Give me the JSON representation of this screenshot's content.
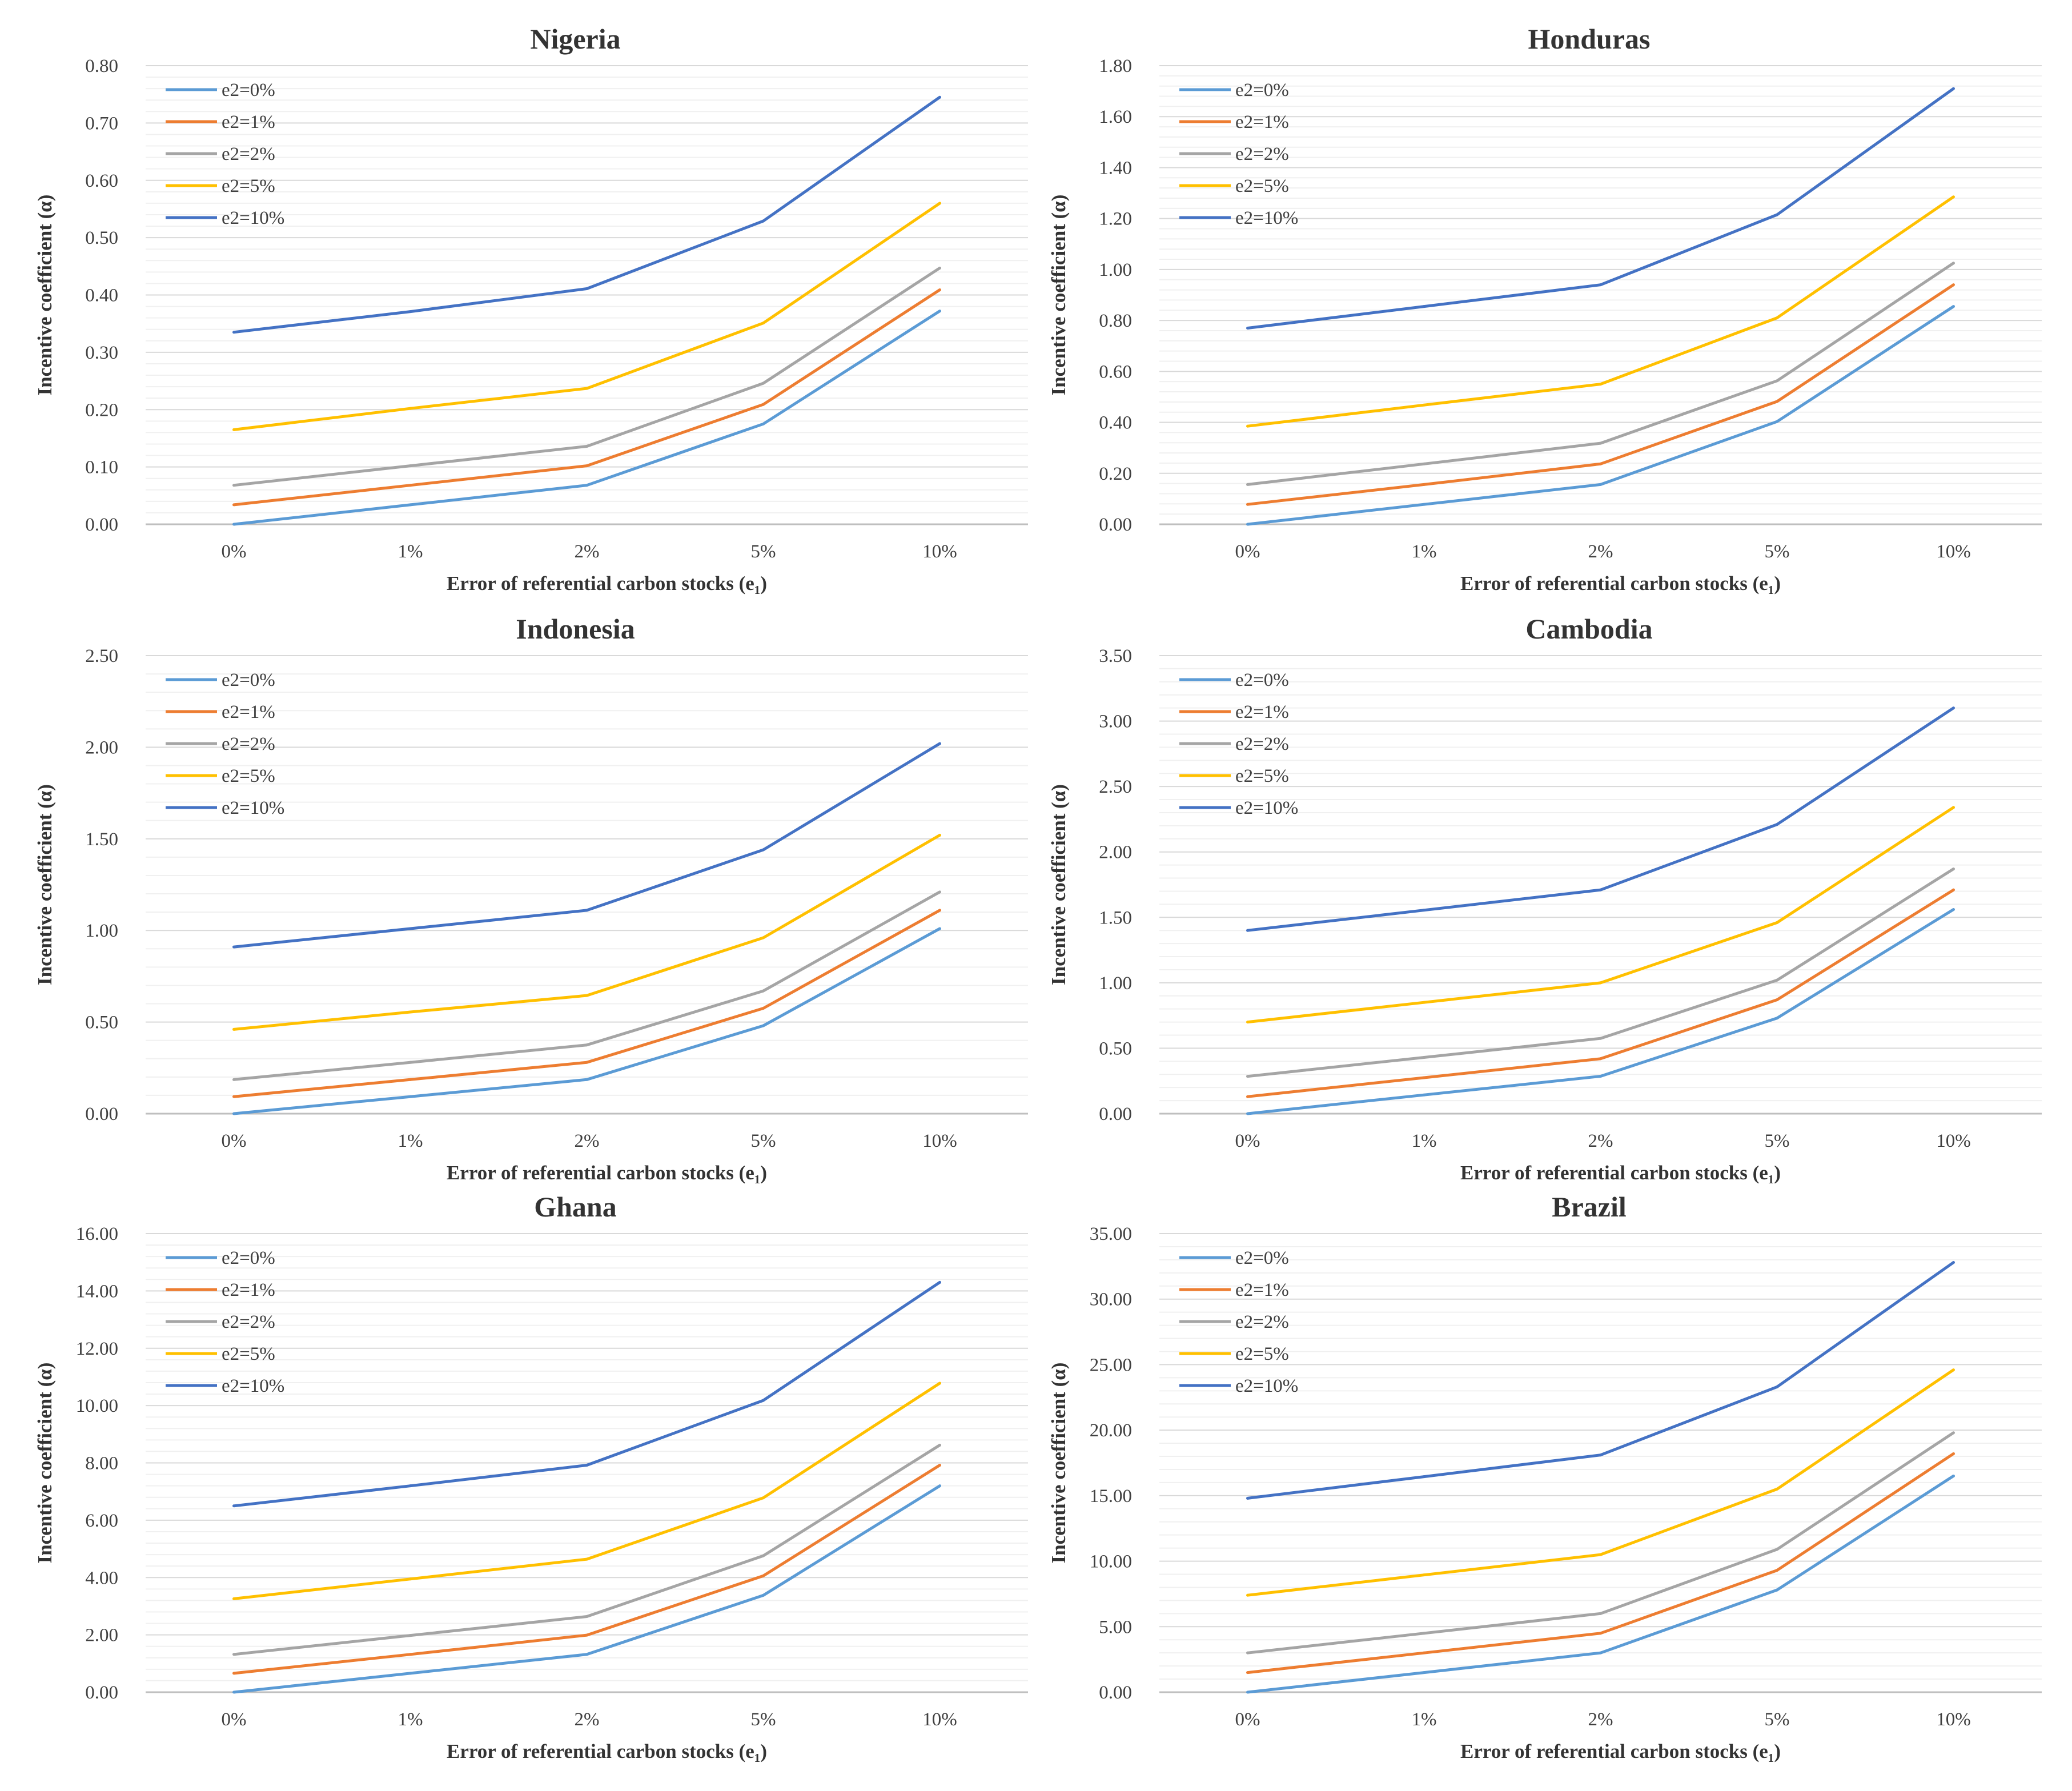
{
  "chart_data": [
    {
      "type": "line",
      "title": "Nigeria",
      "xlabel": "Error of referential carbon stocks (e₁)",
      "ylabel": "Incentive coefficient (α)",
      "categories": [
        "0%",
        "1%",
        "2%",
        "5%",
        "10%"
      ],
      "ylim": [
        0,
        0.8
      ],
      "ystep": 0.1,
      "ydecimals": 2,
      "ytick_labels": [
        "0.00",
        "0.10",
        "0.20",
        "0.30",
        "0.40",
        "0.50",
        "0.60",
        "0.70",
        "0.80"
      ],
      "series": [
        {
          "name": "e2=0%",
          "values": [
            0.0,
            0.034,
            0.068,
            0.175,
            0.372
          ]
        },
        {
          "name": "e2=1%",
          "values": [
            0.034,
            0.068,
            0.102,
            0.209,
            0.409
          ]
        },
        {
          "name": "e2=2%",
          "values": [
            0.068,
            0.102,
            0.136,
            0.246,
            0.447
          ]
        },
        {
          "name": "e2=5%",
          "values": [
            0.165,
            0.202,
            0.237,
            0.351,
            0.56
          ]
        },
        {
          "name": "e2=10%",
          "values": [
            0.335,
            0.371,
            0.411,
            0.529,
            0.745
          ]
        }
      ]
    },
    {
      "type": "line",
      "title": "Honduras",
      "xlabel": "Error of referential carbon stocks (e₁)",
      "ylabel": "Incentive coefficient (α)",
      "categories": [
        "0%",
        "1%",
        "2%",
        "5%",
        "10%"
      ],
      "ylim": [
        0,
        1.8
      ],
      "ystep": 0.2,
      "ydecimals": 2,
      "ytick_labels": [
        "0.00",
        "0.20",
        "0.40",
        "0.60",
        "0.80",
        "1.00",
        "1.20",
        "1.40",
        "1.60",
        "1.80"
      ],
      "series": [
        {
          "name": "e2=0%",
          "values": [
            0.0,
            0.078,
            0.156,
            0.403,
            0.855
          ]
        },
        {
          "name": "e2=1%",
          "values": [
            0.078,
            0.156,
            0.237,
            0.482,
            0.94
          ]
        },
        {
          "name": "e2=2%",
          "values": [
            0.156,
            0.237,
            0.318,
            0.563,
            1.025
          ]
        },
        {
          "name": "e2=5%",
          "values": [
            0.385,
            0.468,
            0.55,
            0.81,
            1.285
          ]
        },
        {
          "name": "e2=10%",
          "values": [
            0.77,
            0.855,
            0.94,
            1.215,
            1.71
          ]
        }
      ]
    },
    {
      "type": "line",
      "title": "Indonesia",
      "xlabel": "Error of referential carbon stocks (e₁)",
      "ylabel": "Incentive coefficient (α)",
      "categories": [
        "0%",
        "1%",
        "2%",
        "5%",
        "10%"
      ],
      "ylim": [
        0,
        2.5
      ],
      "ystep": 0.5,
      "ydecimals": 2,
      "ytick_labels": [
        "0.00",
        "0.50",
        "1.00",
        "1.50",
        "2.00",
        "2.50"
      ],
      "series": [
        {
          "name": "e2=0%",
          "values": [
            0.0,
            0.093,
            0.186,
            0.48,
            1.01
          ]
        },
        {
          "name": "e2=1%",
          "values": [
            0.093,
            0.186,
            0.28,
            0.575,
            1.11
          ]
        },
        {
          "name": "e2=2%",
          "values": [
            0.186,
            0.28,
            0.375,
            0.67,
            1.21
          ]
        },
        {
          "name": "e2=5%",
          "values": [
            0.46,
            0.555,
            0.645,
            0.96,
            1.52
          ]
        },
        {
          "name": "e2=10%",
          "values": [
            0.91,
            1.01,
            1.11,
            1.44,
            2.02
          ]
        }
      ]
    },
    {
      "type": "line",
      "title": "Cambodia",
      "xlabel": "Error of referential carbon stocks (e₁)",
      "ylabel": "Incentive coefficient (α)",
      "categories": [
        "0%",
        "1%",
        "2%",
        "5%",
        "10%"
      ],
      "ylim": [
        0,
        3.5
      ],
      "ystep": 0.5,
      "ydecimals": 2,
      "ytick_labels": [
        "0.00",
        "0.50",
        "1.00",
        "1.50",
        "2.00",
        "2.50",
        "3.00",
        "3.50"
      ],
      "series": [
        {
          "name": "e2=0%",
          "values": [
            0.0,
            0.143,
            0.286,
            0.73,
            1.56
          ]
        },
        {
          "name": "e2=1%",
          "values": [
            0.13,
            0.275,
            0.42,
            0.87,
            1.71
          ]
        },
        {
          "name": "e2=2%",
          "values": [
            0.285,
            0.43,
            0.575,
            1.02,
            1.87
          ]
        },
        {
          "name": "e2=5%",
          "values": [
            0.7,
            0.85,
            1.0,
            1.46,
            2.34
          ]
        },
        {
          "name": "e2=10%",
          "values": [
            1.4,
            1.555,
            1.71,
            2.21,
            3.1
          ]
        }
      ]
    },
    {
      "type": "line",
      "title": "Ghana",
      "xlabel": "Error of referential carbon stocks (e₁)",
      "ylabel": "Incentive coefficient (α)",
      "categories": [
        "0%",
        "1%",
        "2%",
        "5%",
        "10%"
      ],
      "ylim": [
        0,
        16
      ],
      "ystep": 2,
      "ydecimals": 2,
      "ytick_labels": [
        "0.00",
        "2.00",
        "4.00",
        "6.00",
        "8.00",
        "10.00",
        "12.00",
        "14.00",
        "16.00"
      ],
      "series": [
        {
          "name": "e2=0%",
          "values": [
            0.0,
            0.66,
            1.32,
            3.38,
            7.2
          ]
        },
        {
          "name": "e2=1%",
          "values": [
            0.66,
            1.32,
            1.99,
            4.06,
            7.92
          ]
        },
        {
          "name": "e2=2%",
          "values": [
            1.32,
            1.98,
            2.64,
            4.76,
            8.62
          ]
        },
        {
          "name": "e2=5%",
          "values": [
            3.26,
            3.95,
            4.64,
            6.78,
            10.78
          ]
        },
        {
          "name": "e2=10%",
          "values": [
            6.5,
            7.2,
            7.92,
            10.18,
            14.3
          ]
        }
      ]
    },
    {
      "type": "line",
      "title": "Brazil",
      "xlabel": "Error of referential carbon stocks (e₁)",
      "ylabel": "Incentive coefficient (α)",
      "categories": [
        "0%",
        "1%",
        "2%",
        "5%",
        "10%"
      ],
      "ylim": [
        0,
        35
      ],
      "ystep": 5,
      "ydecimals": 2,
      "ytick_labels": [
        "0.00",
        "5.00",
        "10.00",
        "15.00",
        "20.00",
        "25.00",
        "30.00",
        "35.00"
      ],
      "series": [
        {
          "name": "e2=0%",
          "values": [
            0.0,
            1.5,
            3.0,
            7.8,
            16.5
          ]
        },
        {
          "name": "e2=1%",
          "values": [
            1.5,
            3.0,
            4.5,
            9.3,
            18.2
          ]
        },
        {
          "name": "e2=2%",
          "values": [
            3.0,
            4.5,
            6.0,
            10.9,
            19.8
          ]
        },
        {
          "name": "e2=5%",
          "values": [
            7.4,
            8.95,
            10.5,
            15.5,
            24.6
          ]
        },
        {
          "name": "e2=10%",
          "values": [
            14.8,
            16.45,
            18.1,
            23.3,
            32.8
          ]
        }
      ]
    }
  ],
  "colors": {
    "e2=0%": "#5b9bd5",
    "e2=1%": "#ed7d31",
    "e2=2%": "#a5a5a5",
    "e2=5%": "#ffc000",
    "e2=10%": "#4472c4",
    "gridline": "#d9d9d9",
    "minor_gridline": "#f0f0f0",
    "axis": "#bfbfbf"
  }
}
